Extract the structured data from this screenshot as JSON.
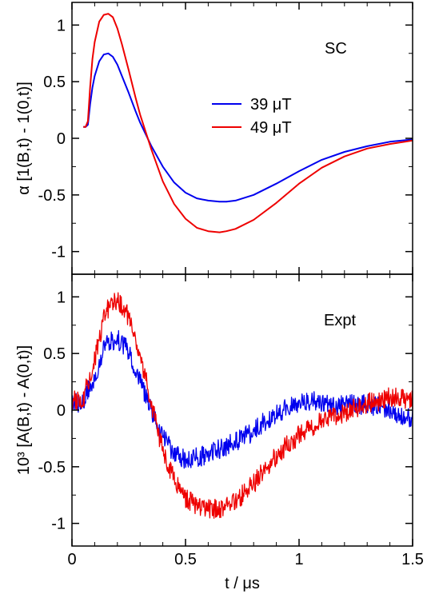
{
  "chart_data": {
    "type": "line",
    "xlabel": "t / μs",
    "xlim": [
      0,
      1.5
    ],
    "xticks": [
      "0",
      "0.5",
      "1",
      "1.5"
    ],
    "panels": [
      {
        "name": "SC",
        "label": "SC",
        "ylabel": "α [1(B,t) - 1(0,t)]",
        "ylim": [
          -1.2,
          1.2
        ],
        "yticks": [
          "1",
          "0.5",
          "0",
          "-0.5",
          "-1"
        ],
        "legend": {
          "placement": "center-right"
        },
        "series": [
          {
            "name": "39 μT",
            "color": "#0000ee",
            "x": [
              0.05,
              0.06,
              0.07,
              0.08,
              0.09,
              0.1,
              0.12,
              0.14,
              0.16,
              0.18,
              0.2,
              0.22,
              0.25,
              0.28,
              0.3,
              0.35,
              0.4,
              0.45,
              0.5,
              0.55,
              0.6,
              0.65,
              0.68,
              0.72,
              0.8,
              0.9,
              1.0,
              1.1,
              1.2,
              1.3,
              1.4,
              1.5
            ],
            "y": [
              0.1,
              0.1,
              0.12,
              0.3,
              0.45,
              0.55,
              0.68,
              0.74,
              0.75,
              0.72,
              0.65,
              0.55,
              0.4,
              0.24,
              0.14,
              -0.07,
              -0.25,
              -0.39,
              -0.48,
              -0.53,
              -0.55,
              -0.56,
              -0.56,
              -0.55,
              -0.5,
              -0.4,
              -0.29,
              -0.19,
              -0.12,
              -0.07,
              -0.03,
              -0.01
            ]
          },
          {
            "name": "49 μT",
            "color": "#ee0000",
            "x": [
              0.05,
              0.06,
              0.07,
              0.08,
              0.09,
              0.1,
              0.12,
              0.14,
              0.16,
              0.18,
              0.2,
              0.22,
              0.25,
              0.28,
              0.3,
              0.35,
              0.4,
              0.45,
              0.5,
              0.55,
              0.6,
              0.65,
              0.68,
              0.72,
              0.8,
              0.9,
              1.0,
              1.1,
              1.2,
              1.3,
              1.4,
              1.5
            ],
            "y": [
              0.1,
              0.1,
              0.15,
              0.45,
              0.7,
              0.85,
              1.03,
              1.09,
              1.1,
              1.07,
              0.97,
              0.83,
              0.6,
              0.36,
              0.21,
              -0.1,
              -0.38,
              -0.58,
              -0.71,
              -0.79,
              -0.82,
              -0.83,
              -0.82,
              -0.8,
              -0.72,
              -0.57,
              -0.4,
              -0.26,
              -0.16,
              -0.09,
              -0.05,
              -0.02
            ]
          }
        ]
      },
      {
        "name": "Expt",
        "label": "Expt",
        "ylabel": "10³ [A(B,t) - A(0,t)]",
        "ylim": [
          -1.2,
          1.2
        ],
        "yticks": [
          "1",
          "0.5",
          "0",
          "-0.5",
          "-1"
        ],
        "series": [
          {
            "name": "39 μT",
            "color": "#0000ee",
            "noise": 0.09,
            "x": [
              0.0,
              0.05,
              0.1,
              0.15,
              0.2,
              0.25,
              0.3,
              0.35,
              0.4,
              0.45,
              0.5,
              0.55,
              0.6,
              0.65,
              0.7,
              0.75,
              0.8,
              0.85,
              0.9,
              0.95,
              1.0,
              1.05,
              1.1,
              1.15,
              1.2,
              1.25,
              1.3,
              1.35,
              1.4,
              1.45,
              1.5
            ],
            "y": [
              0.05,
              0.08,
              0.3,
              0.58,
              0.63,
              0.52,
              0.26,
              0.0,
              -0.22,
              -0.38,
              -0.43,
              -0.42,
              -0.38,
              -0.34,
              -0.3,
              -0.25,
              -0.18,
              -0.1,
              -0.03,
              0.02,
              0.06,
              0.08,
              0.06,
              0.05,
              0.04,
              0.05,
              0.05,
              0.03,
              0.0,
              -0.05,
              -0.06
            ]
          },
          {
            "name": "49 μT",
            "color": "#ee0000",
            "noise": 0.09,
            "x": [
              0.0,
              0.05,
              0.1,
              0.15,
              0.2,
              0.25,
              0.3,
              0.35,
              0.4,
              0.45,
              0.5,
              0.55,
              0.6,
              0.65,
              0.7,
              0.75,
              0.8,
              0.85,
              0.9,
              0.95,
              1.0,
              1.05,
              1.1,
              1.15,
              1.2,
              1.25,
              1.3,
              1.35,
              1.4,
              1.45,
              1.5
            ],
            "y": [
              0.08,
              0.1,
              0.45,
              0.88,
              0.98,
              0.82,
              0.48,
              0.05,
              -0.35,
              -0.62,
              -0.78,
              -0.85,
              -0.88,
              -0.87,
              -0.83,
              -0.75,
              -0.65,
              -0.52,
              -0.4,
              -0.3,
              -0.22,
              -0.15,
              -0.1,
              -0.06,
              -0.02,
              0.02,
              0.06,
              0.08,
              0.12,
              0.1,
              0.1
            ]
          }
        ]
      }
    ]
  }
}
